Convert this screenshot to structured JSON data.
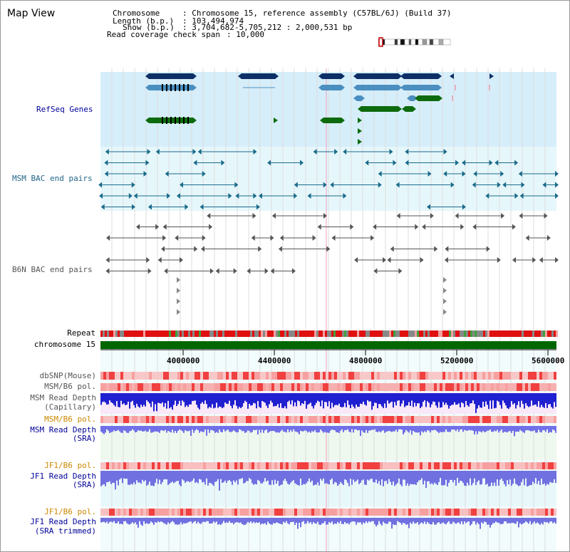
{
  "header": {
    "view_title": "Map View",
    "chromosome_label": "Chromosome",
    "chromosome_value": ": Chromosome 15, reference assembly (C57BL/6J) (Build 37)",
    "length_label": "Length (b.p.)",
    "length_value": ": 103,494,974",
    "show_label": "Show (b.p.)",
    "show_value": ": 3,704,682-5,705,212 : 2,000,531 bp",
    "coverage_label": "Read coverage check span",
    "coverage_value": ": 10,000"
  },
  "tracks": {
    "refseq": "RefSeq Genes",
    "msm_bac": "MSM BAC end pairs",
    "b6n_bac": "B6N BAC end pairs",
    "repeat": "Repeat",
    "chromosome": "chromosome 15",
    "dbsnp": "dbSNP(Mouse)",
    "msm_b6_pol_1": "MSM/B6 pol.",
    "msm_depth_cap_1": "MSM Read Depth",
    "msm_depth_cap_2": "(Capillary)",
    "msm_b6_pol_2": "MSM/B6 pol.",
    "msm_depth_sra_1": "MSM Read Depth",
    "msm_depth_sra_2": "(SRA)",
    "jf1_b6_pol_1": "JF1/B6 pol.",
    "jf1_depth_sra_1": "JF1 Read Depth",
    "jf1_depth_sra_2": "(SRA)",
    "jf1_b6_pol_2": "JF1/B6 pol.",
    "jf1_depth_trim_1": "JF1 Read Depth",
    "jf1_depth_trim_2": "(SRA trimmed)"
  },
  "axis": {
    "ticks": [
      "4000000",
      "4400000",
      "4800000",
      "5200000",
      "5600000"
    ]
  },
  "colors": {
    "refseq_band": "#d6eefa",
    "msm_band": "#e6f7fb",
    "gene_dark": "#0d2f66",
    "gene_mid": "#4a8fc0",
    "gene_green": "#0d6b0d",
    "msm_pair": "#1a6b8a",
    "b6n_pair": "#555555",
    "chromosome_bar": "#006600",
    "label_blue": "#000099",
    "label_msm": "#226688",
    "label_orange": "#cc8800"
  }
}
